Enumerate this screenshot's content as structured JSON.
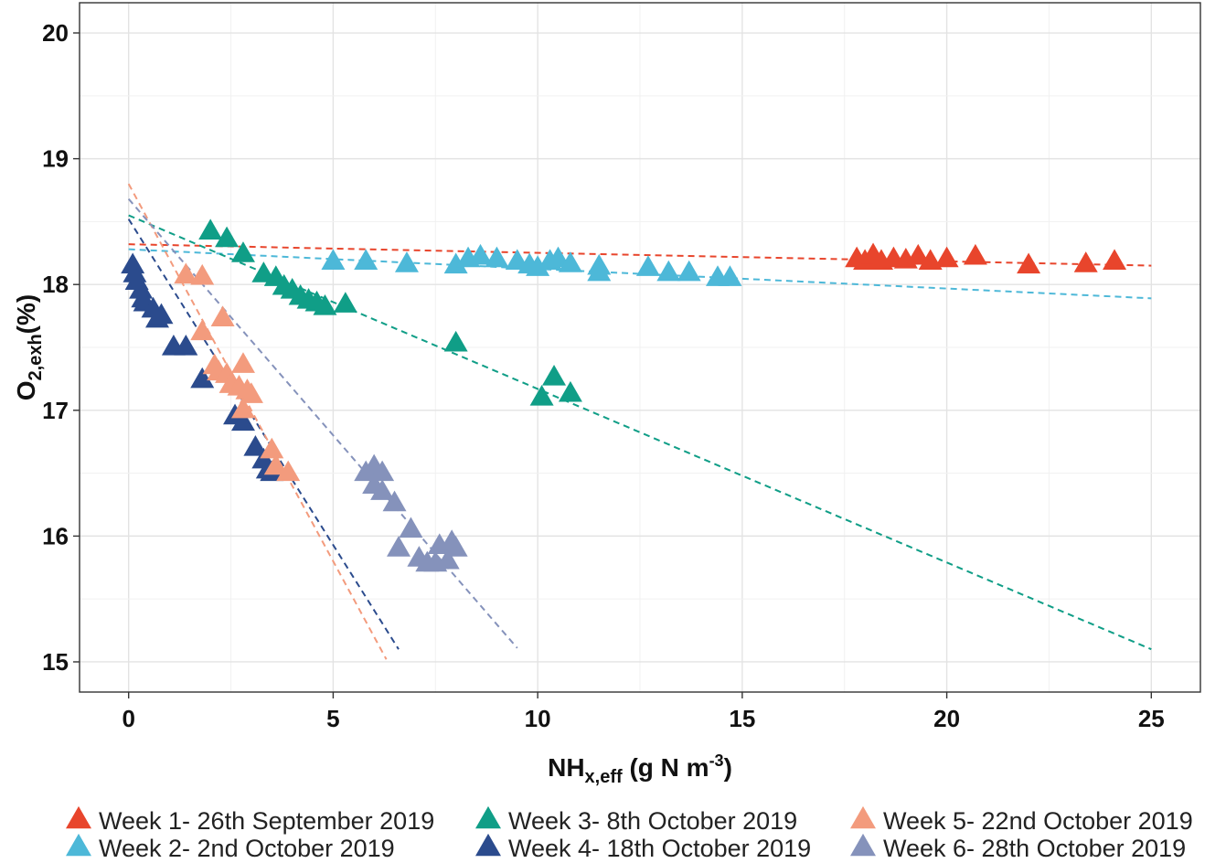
{
  "chart_data": {
    "type": "scatter",
    "title": "",
    "xlabel": {
      "main": "NH",
      "sub": "x,eff",
      "unit": " (g N m",
      "sup": "-3",
      "close": ")"
    },
    "ylabel": {
      "main": "O",
      "sub": "2,exh",
      "unit": "(%)"
    },
    "xlim": [
      -1.2,
      26.2
    ],
    "ylim": [
      14.76,
      20.24
    ],
    "x_ticks": [
      0,
      5,
      10,
      15,
      20,
      25
    ],
    "y_ticks": [
      15,
      16,
      17,
      18,
      19,
      20
    ],
    "x_tick_labels": [
      "0",
      "5",
      "10",
      "15",
      "20",
      "25"
    ],
    "y_tick_labels": [
      "15",
      "16",
      "17",
      "18",
      "19",
      "20"
    ],
    "grid": true,
    "legend_position": "bottom",
    "series": [
      {
        "name": "Week 1- 26th September 2019",
        "color": "#e8452c",
        "points": [
          [
            17.8,
            18.2
          ],
          [
            18.0,
            18.18
          ],
          [
            18.2,
            18.23
          ],
          [
            18.4,
            18.18
          ],
          [
            18.7,
            18.2
          ],
          [
            19.0,
            18.19
          ],
          [
            19.3,
            18.22
          ],
          [
            19.6,
            18.18
          ],
          [
            20.0,
            18.2
          ],
          [
            20.7,
            18.22
          ],
          [
            22.0,
            18.15
          ],
          [
            23.4,
            18.16
          ],
          [
            24.1,
            18.18
          ]
        ],
        "fit": [
          [
            0,
            18.32
          ],
          [
            25,
            18.15
          ]
        ]
      },
      {
        "name": "Week 2- 2nd October 2019",
        "color": "#4db8d8",
        "points": [
          [
            5.0,
            18.18
          ],
          [
            5.8,
            18.18
          ],
          [
            6.8,
            18.16
          ],
          [
            8.0,
            18.15
          ],
          [
            8.3,
            18.2
          ],
          [
            8.6,
            18.22
          ],
          [
            9.0,
            18.2
          ],
          [
            9.5,
            18.18
          ],
          [
            9.8,
            18.15
          ],
          [
            10.0,
            18.13
          ],
          [
            10.3,
            18.18
          ],
          [
            10.5,
            18.2
          ],
          [
            10.8,
            18.16
          ],
          [
            11.5,
            18.14
          ],
          [
            11.5,
            18.09
          ],
          [
            12.7,
            18.13
          ],
          [
            13.2,
            18.09
          ],
          [
            13.7,
            18.09
          ],
          [
            14.4,
            18.05
          ],
          [
            14.7,
            18.05
          ]
        ],
        "fit": [
          [
            0,
            18.28
          ],
          [
            25,
            17.89
          ]
        ]
      },
      {
        "name": "Week 3- 8th October 2019",
        "color": "#109e87",
        "points": [
          [
            2.0,
            18.42
          ],
          [
            2.4,
            18.36
          ],
          [
            2.8,
            18.24
          ],
          [
            3.3,
            18.08
          ],
          [
            3.6,
            18.05
          ],
          [
            3.8,
            17.98
          ],
          [
            4.0,
            17.95
          ],
          [
            4.2,
            17.9
          ],
          [
            4.4,
            17.87
          ],
          [
            4.6,
            17.85
          ],
          [
            4.8,
            17.82
          ],
          [
            5.3,
            17.84
          ],
          [
            8.0,
            17.53
          ],
          [
            10.1,
            17.1
          ],
          [
            10.4,
            17.26
          ],
          [
            10.8,
            17.13
          ]
        ],
        "fit": [
          [
            0,
            18.55
          ],
          [
            25,
            15.1
          ]
        ]
      },
      {
        "name": "Week 4- 18th October 2019",
        "color": "#2b4b8d",
        "points": [
          [
            0.1,
            18.15
          ],
          [
            0.15,
            18.08
          ],
          [
            0.2,
            18.02
          ],
          [
            0.3,
            17.95
          ],
          [
            0.35,
            17.88
          ],
          [
            0.4,
            17.85
          ],
          [
            0.6,
            17.8
          ],
          [
            0.7,
            17.72
          ],
          [
            0.8,
            17.75
          ],
          [
            1.1,
            17.5
          ],
          [
            1.4,
            17.5
          ],
          [
            1.8,
            17.24
          ],
          [
            2.6,
            16.95
          ],
          [
            2.8,
            16.9
          ],
          [
            3.1,
            16.7
          ],
          [
            3.3,
            16.6
          ],
          [
            3.4,
            16.52
          ],
          [
            3.5,
            16.5
          ]
        ],
        "fit": [
          [
            0,
            18.52
          ],
          [
            6.6,
            15.1
          ]
        ]
      },
      {
        "name": "Week 5- 22nd October 2019",
        "color": "#f39b7d",
        "points": [
          [
            1.4,
            18.07
          ],
          [
            1.8,
            18.06
          ],
          [
            1.8,
            17.62
          ],
          [
            2.3,
            17.73
          ],
          [
            2.1,
            17.35
          ],
          [
            2.2,
            17.3
          ],
          [
            2.4,
            17.28
          ],
          [
            2.5,
            17.2
          ],
          [
            2.7,
            17.18
          ],
          [
            2.8,
            17.36
          ],
          [
            2.9,
            17.15
          ],
          [
            3.0,
            17.12
          ],
          [
            2.8,
            17.0
          ],
          [
            3.5,
            16.68
          ],
          [
            3.6,
            16.55
          ],
          [
            3.9,
            16.5
          ]
        ],
        "fit": [
          [
            0,
            18.8
          ],
          [
            6.3,
            15.02
          ]
        ]
      },
      {
        "name": "Week 6- 28th October 2019",
        "color": "#8592bb",
        "points": [
          [
            5.8,
            16.5
          ],
          [
            6.0,
            16.55
          ],
          [
            6.2,
            16.5
          ],
          [
            6.0,
            16.4
          ],
          [
            6.2,
            16.35
          ],
          [
            6.5,
            16.26
          ],
          [
            6.6,
            15.9
          ],
          [
            6.9,
            16.05
          ],
          [
            7.1,
            15.82
          ],
          [
            7.3,
            15.78
          ],
          [
            7.5,
            15.78
          ],
          [
            7.6,
            15.92
          ],
          [
            7.8,
            15.8
          ],
          [
            7.9,
            15.95
          ],
          [
            8.0,
            15.9
          ]
        ],
        "fit": [
          [
            0,
            18.68
          ],
          [
            9.5,
            15.11
          ]
        ]
      }
    ]
  }
}
